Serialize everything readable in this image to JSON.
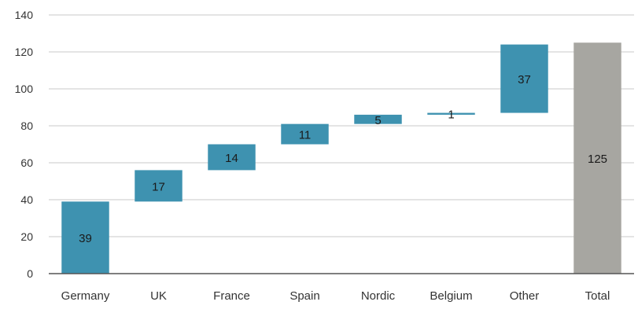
{
  "chart_data": {
    "type": "bar",
    "subtype": "waterfall",
    "title": "",
    "xlabel": "",
    "ylabel": "",
    "ylim": [
      0,
      140
    ],
    "yticks": [
      0,
      20,
      40,
      60,
      80,
      100,
      120,
      140
    ],
    "grid": true,
    "legend": "none",
    "categories": [
      "Germany",
      "UK",
      "France",
      "Spain",
      "Nordic",
      "Belgium",
      "Other",
      "Total"
    ],
    "values": [
      39,
      17,
      14,
      11,
      5,
      1,
      37,
      125
    ],
    "total_index": 7,
    "colors": {
      "increment": "#3e92b0",
      "total": "#a7a6a1",
      "grid": "#c8c8c8"
    }
  }
}
